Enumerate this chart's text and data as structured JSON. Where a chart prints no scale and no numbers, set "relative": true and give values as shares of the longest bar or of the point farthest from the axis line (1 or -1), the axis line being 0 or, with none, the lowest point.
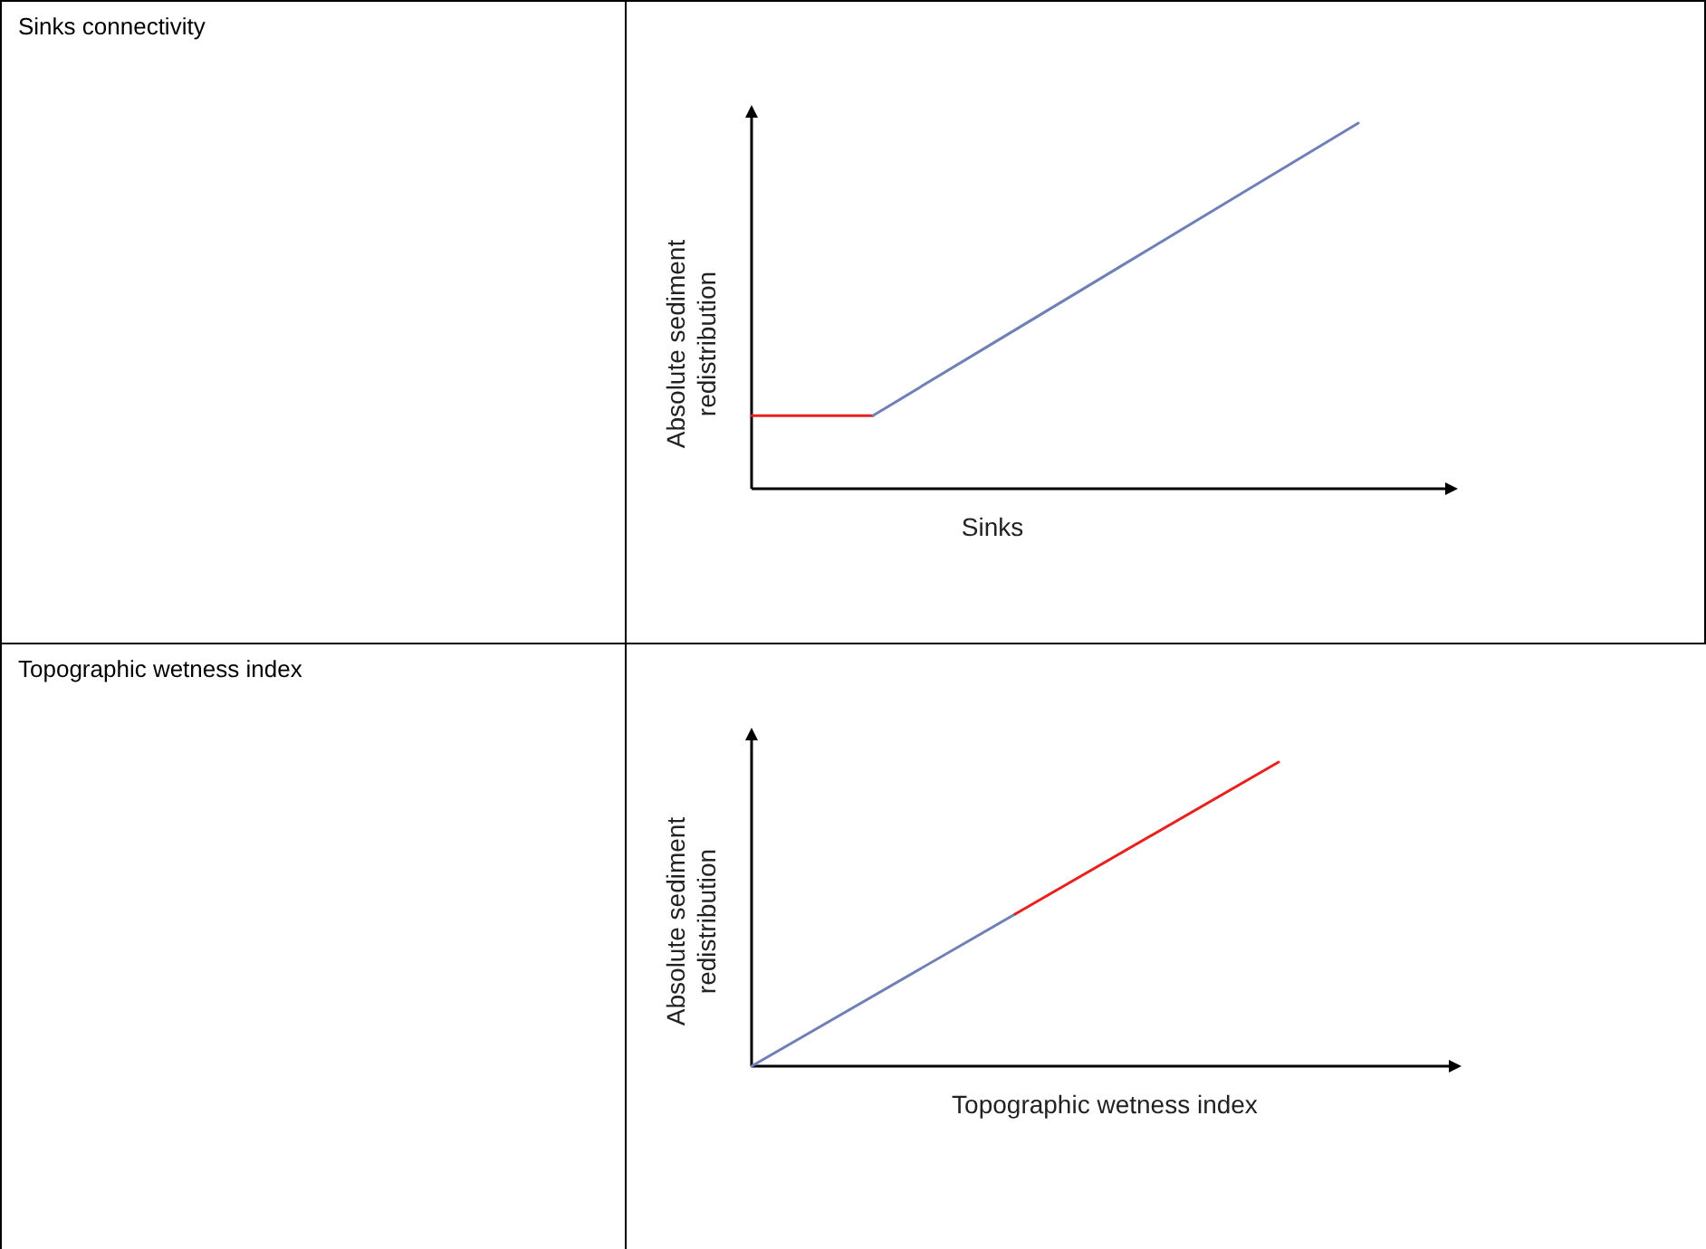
{
  "chart_data": [
    {
      "type": "line",
      "annotations": [
        "Sinks connectivity"
      ],
      "xlabel": "Sinks",
      "ylabel": "Absolute sediment redistribution",
      "relative": true,
      "categories": [
        null,
        null,
        null,
        null,
        null,
        null
      ],
      "series": [
        {
          "color": "#e8201e",
          "values": [
            0.2,
            0.2,
            null,
            null,
            null,
            null
          ]
        },
        {
          "color": "#6f80b8",
          "values": [
            null,
            0.2,
            0.4,
            0.6,
            0.8,
            1
          ]
        }
      ]
    },
    {
      "type": "line",
      "annotations": [
        "Topographic wetness index"
      ],
      "xlabel": "Topographic wetness index",
      "ylabel": "Absolute sediment redistribution",
      "relative": true,
      "categories": [
        null,
        null,
        null
      ],
      "series": [
        {
          "color": "#6f80b8",
          "values": [
            0,
            0.5,
            null
          ]
        },
        {
          "color": "#e8201e",
          "values": [
            null,
            0.5,
            1
          ]
        }
      ]
    }
  ]
}
